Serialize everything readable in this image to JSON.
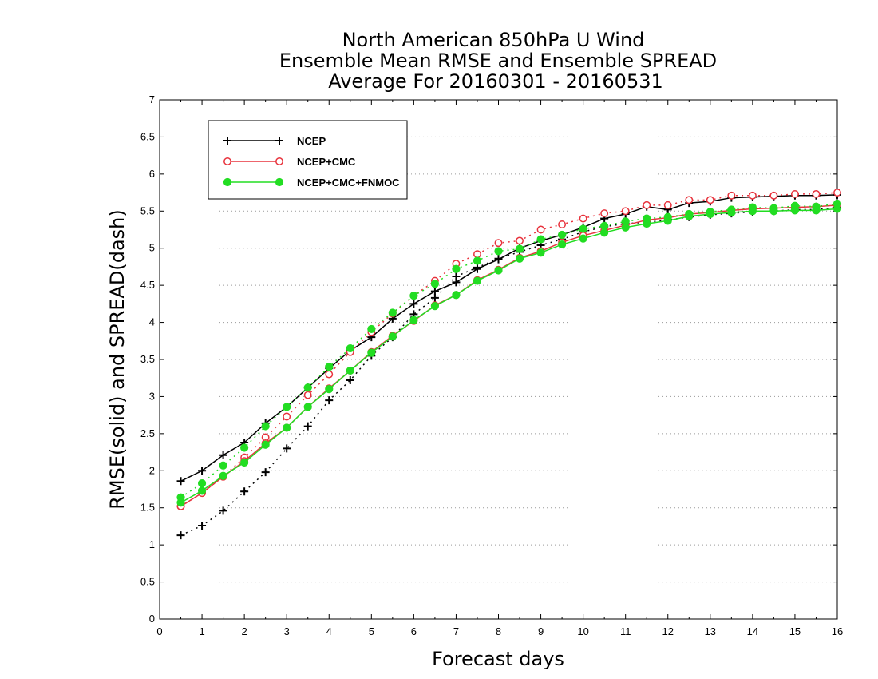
{
  "chart_data": {
    "type": "line",
    "title": [
      "North American 850hPa U Wind",
      "Ensemble Mean RMSE and Ensemble SPREAD",
      "Average For 20160301 - 20160531"
    ],
    "xlabel": "Forecast days",
    "ylabel": "RMSE(solid) and SPREAD(dash)",
    "xlim": [
      0,
      16
    ],
    "ylim": [
      0,
      7
    ],
    "xticks": [
      "0",
      "1",
      "2",
      "3",
      "4",
      "5",
      "6",
      "7",
      "8",
      "9",
      "10",
      "11",
      "12",
      "13",
      "14",
      "15",
      "16"
    ],
    "yticks": [
      "0",
      "0.5",
      "1",
      "1.5",
      "2",
      "2.5",
      "3",
      "3.5",
      "4",
      "4.5",
      "5",
      "5.5",
      "6",
      "6.5",
      "7"
    ],
    "grid": "horizontal dotted",
    "legend_position": "top-left",
    "x": [
      0.5,
      1,
      1.5,
      2,
      2.5,
      3,
      3.5,
      4,
      4.5,
      5,
      5.5,
      6,
      6.5,
      7,
      7.5,
      8,
      8.5,
      9,
      9.5,
      10,
      10.5,
      11,
      11.5,
      12,
      12.5,
      13,
      13.5,
      14,
      14.5,
      15,
      15.5,
      16
    ],
    "series": [
      {
        "name": "NCEP",
        "color": "#000000",
        "marker": "plus",
        "rmse": [
          1.86,
          2.0,
          2.21,
          2.38,
          2.64,
          2.86,
          3.12,
          3.38,
          3.62,
          3.8,
          4.05,
          4.25,
          4.42,
          4.54,
          4.72,
          4.85,
          5.0,
          5.1,
          5.18,
          5.28,
          5.4,
          5.46,
          5.56,
          5.52,
          5.61,
          5.63,
          5.68,
          5.69,
          5.7,
          5.71,
          5.71,
          5.72
        ],
        "spread": [
          1.13,
          1.26,
          1.46,
          1.72,
          1.98,
          2.3,
          2.6,
          2.95,
          3.22,
          3.55,
          3.8,
          4.11,
          4.33,
          4.62,
          4.74,
          4.86,
          4.95,
          5.04,
          5.12,
          5.22,
          5.29,
          5.33,
          5.35,
          5.38,
          5.42,
          5.45,
          5.47,
          5.49,
          5.5,
          5.52,
          5.52,
          5.55
        ]
      },
      {
        "name": "NCEP+CMC",
        "color": "#e8323c",
        "marker": "open-circle",
        "rmse": [
          1.52,
          1.7,
          1.92,
          2.13,
          2.37,
          2.58,
          2.86,
          3.11,
          3.35,
          3.6,
          3.82,
          4.02,
          4.23,
          4.37,
          4.57,
          4.71,
          4.87,
          4.96,
          5.08,
          5.17,
          5.24,
          5.31,
          5.38,
          5.41,
          5.46,
          5.48,
          5.51,
          5.53,
          5.54,
          5.55,
          5.56,
          5.58
        ],
        "spread": [
          1.52,
          1.7,
          1.92,
          2.18,
          2.45,
          2.73,
          3.02,
          3.3,
          3.6,
          3.87,
          4.12,
          4.36,
          4.56,
          4.79,
          4.92,
          5.07,
          5.1,
          5.25,
          5.32,
          5.4,
          5.47,
          5.5,
          5.58,
          5.58,
          5.65,
          5.65,
          5.71,
          5.71,
          5.71,
          5.73,
          5.73,
          5.75
        ]
      },
      {
        "name": "NCEP+CMC+FNMOC",
        "color": "#22dd22",
        "marker": "filled-circle",
        "rmse": [
          1.57,
          1.73,
          1.93,
          2.11,
          2.35,
          2.58,
          2.86,
          3.1,
          3.35,
          3.59,
          3.81,
          4.03,
          4.22,
          4.37,
          4.56,
          4.7,
          4.86,
          4.94,
          5.05,
          5.13,
          5.21,
          5.28,
          5.33,
          5.37,
          5.43,
          5.46,
          5.48,
          5.5,
          5.5,
          5.51,
          5.51,
          5.53
        ],
        "spread": [
          1.64,
          1.83,
          2.07,
          2.31,
          2.6,
          2.86,
          3.12,
          3.4,
          3.65,
          3.91,
          4.13,
          4.36,
          4.52,
          4.72,
          4.83,
          4.96,
          4.99,
          5.12,
          5.18,
          5.26,
          5.3,
          5.36,
          5.4,
          5.42,
          5.46,
          5.49,
          5.52,
          5.55,
          5.54,
          5.57,
          5.56,
          5.6
        ]
      }
    ]
  }
}
